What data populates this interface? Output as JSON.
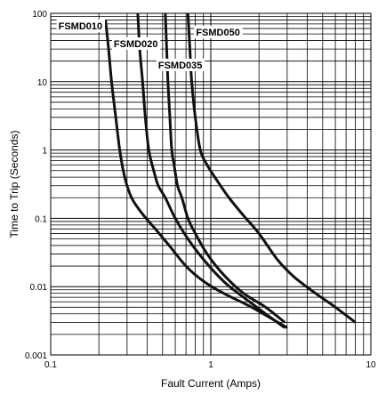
{
  "chart_data": {
    "type": "line",
    "xlabel": "Fault Current (Amps)",
    "ylabel": "Time to Trip (Seconds)",
    "xscale": "log",
    "yscale": "log",
    "xlim": [
      0.1,
      10
    ],
    "ylim": [
      0.001,
      100
    ],
    "grid": true,
    "x_tick_labels": [
      "0.1",
      "1",
      "10"
    ],
    "y_tick_labels": [
      "0.001",
      "0.01",
      "0.1",
      "1",
      "10",
      "100"
    ],
    "series": [
      {
        "name": "FSMD010",
        "x": [
          0.22,
          0.23,
          0.24,
          0.255,
          0.27,
          0.29,
          0.32,
          0.37,
          0.45,
          0.55,
          0.7,
          0.9,
          1.2,
          1.8,
          3.0
        ],
        "y": [
          80,
          30,
          10,
          3,
          1,
          0.4,
          0.2,
          0.12,
          0.07,
          0.04,
          0.02,
          0.012,
          0.008,
          0.005,
          0.0025
        ]
      },
      {
        "name": "FSMD020",
        "x": [
          0.35,
          0.36,
          0.375,
          0.39,
          0.41,
          0.44,
          0.47,
          0.52,
          0.6,
          0.72,
          0.9,
          1.2,
          1.6,
          2.2,
          2.9
        ],
        "y": [
          100,
          30,
          10,
          3,
          1,
          0.5,
          0.3,
          0.2,
          0.1,
          0.05,
          0.025,
          0.012,
          0.007,
          0.004,
          0.0025
        ]
      },
      {
        "name": "FSMD035",
        "x": [
          0.52,
          0.53,
          0.54,
          0.555,
          0.57,
          0.59,
          0.62,
          0.66,
          0.72,
          0.8,
          0.95,
          1.2,
          1.6,
          2.2,
          2.9
        ],
        "y": [
          100,
          30,
          10,
          3,
          1,
          0.6,
          0.3,
          0.2,
          0.1,
          0.06,
          0.03,
          0.015,
          0.008,
          0.005,
          0.003
        ]
      },
      {
        "name": "FSMD050",
        "x": [
          0.72,
          0.74,
          0.76,
          0.8,
          0.86,
          0.95,
          1.1,
          1.3,
          1.6,
          2.0,
          2.6,
          3.3,
          4.5,
          6.0,
          8.0
        ],
        "y": [
          100,
          30,
          10,
          3,
          1,
          0.6,
          0.35,
          0.2,
          0.11,
          0.06,
          0.025,
          0.014,
          0.008,
          0.005,
          0.003
        ]
      }
    ]
  }
}
